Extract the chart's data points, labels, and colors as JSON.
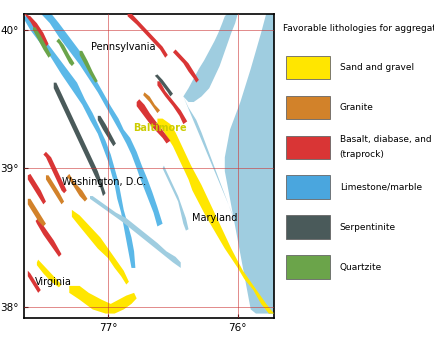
{
  "legend_title": "Favorable lithologies for aggregate",
  "legend_items": [
    {
      "label": "Sand and gravel",
      "color": "#FFE600"
    },
    {
      "label": "Granite",
      "color": "#D2822A"
    },
    {
      "label": "Basalt, diabase, and gabbro\n(traprock)",
      "color": "#D93535"
    },
    {
      "label": "Limestone/marble",
      "color": "#4AA6DE"
    },
    {
      "label": "Serpentinite",
      "color": "#4A5A5A"
    },
    {
      "label": "Quartzite",
      "color": "#6BA44A"
    }
  ],
  "xlim": [
    -77.65,
    -75.72
  ],
  "ylim": [
    37.92,
    40.12
  ],
  "xticks": [
    -77.0,
    -76.0
  ],
  "yticks": [
    38.0,
    39.0,
    40.0
  ],
  "xtick_labels": [
    "77°",
    "76°"
  ],
  "ytick_labels": [
    "38°",
    "39°",
    "40°"
  ],
  "cities": [
    {
      "name": "Baltimore",
      "lon": -76.6,
      "lat": 39.29,
      "bold": true,
      "color": "#CCCC00"
    },
    {
      "name": "Washington, D.C.",
      "lon": -77.03,
      "lat": 38.905,
      "bold": false,
      "color": "black"
    },
    {
      "name": "Pennsylvania",
      "lon": -76.88,
      "lat": 39.88,
      "bold": false,
      "color": "black"
    },
    {
      "name": "Maryland",
      "lon": -76.18,
      "lat": 38.64,
      "bold": false,
      "color": "black"
    },
    {
      "name": "Virginia",
      "lon": -77.42,
      "lat": 38.18,
      "bold": false,
      "color": "black"
    }
  ],
  "sand_gravel": "#FFE600",
  "granite": "#D2822A",
  "basalt": "#D93535",
  "limestone": "#5BB8E8",
  "serpentinite": "#4A5A5A",
  "quartzite": "#6BA44A",
  "water": "#9FCDE0",
  "bg": "#FFFFFF",
  "grid_color": "#CC3333"
}
